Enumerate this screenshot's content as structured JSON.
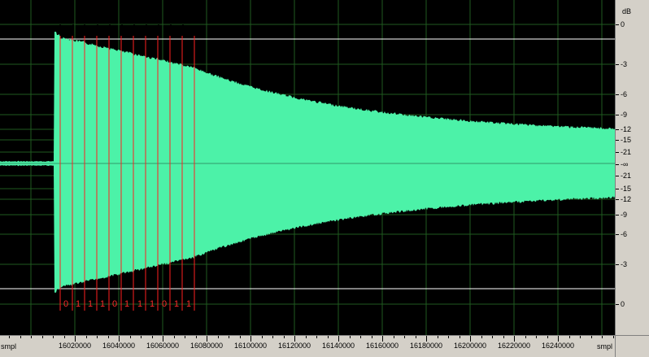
{
  "db_ruler": {
    "unit": "dB",
    "labels": [
      "0",
      "-3",
      "-6",
      "-9",
      "-12",
      "-15",
      "-21",
      "-∞",
      "-21",
      "-15",
      "-12",
      "-9",
      "-6",
      "-3",
      "0"
    ]
  },
  "time_ruler": {
    "unit_left": "smpl",
    "unit_right": "smpl",
    "labels": [
      "16020000",
      "16040000",
      "16060000",
      "16080000",
      "16100000",
      "16120000",
      "16140000",
      "16160000",
      "16180000",
      "16200000",
      "16220000",
      "16240000"
    ]
  },
  "bit_markers": [
    "0",
    "1",
    "1",
    "1",
    "0",
    "1",
    "1",
    "1",
    "0",
    "1",
    "1"
  ],
  "colors": {
    "waveform": "#4cf2a8",
    "background": "#000000",
    "grid": "#1f5a1f",
    "marker": "#ff2020",
    "clip_line": "#ffffff"
  }
}
